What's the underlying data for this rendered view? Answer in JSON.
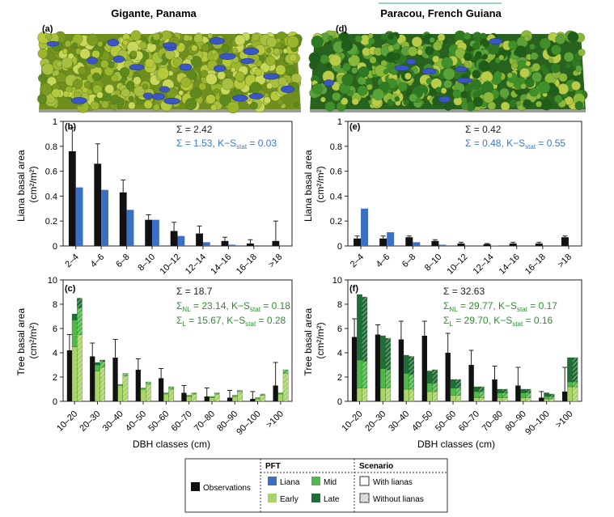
{
  "colors": {
    "observations": "#111111",
    "liana": "#3a6fc4",
    "early": "#a8d468",
    "mid": "#4fb84a",
    "late": "#1f6e37",
    "stat_blue": "#3a79c9",
    "stat_green": "#2f8f2f",
    "canopy_green": "#8fae2a",
    "canopy_blue": "#3a55c4"
  },
  "titles": {
    "left": "Gigante, Panama",
    "right": "Paracou, French Guiana"
  },
  "panel_labels": {
    "a": "(a)",
    "b": "(b)",
    "c": "(c)",
    "d": "(d)",
    "e": "(e)",
    "f": "(f)"
  },
  "axes": {
    "liana_ylabel_1": "Liana basal area",
    "liana_ylabel_2": "(cm²/m²)",
    "tree_ylabel_1": "Tree basal area",
    "tree_ylabel_2": "(cm²/m²)",
    "xlabel": "DBH classes (cm)"
  },
  "stats": {
    "b": {
      "sum_obs": "Σ = 2.42",
      "sum_model": "Σ = 1.53, K−S",
      "sub": "stat",
      "tail": " = 0.03"
    },
    "e": {
      "sum_obs": "Σ = 0.42",
      "sum_model": "Σ = 0.48, K−S",
      "sub": "stat",
      "tail": " = 0.55"
    },
    "c": {
      "sum_obs": "Σ = 18.7",
      "nl_pre": "Σ",
      "nl_sub": "NL",
      "nl_mid": " = 23.14, K−S",
      "nl_sub2": "stat",
      "nl_tail": " = 0.18",
      "l_pre": "Σ",
      "l_sub": "L",
      "l_mid": " = 15.67, K−S",
      "l_sub2": "stat",
      "l_tail": " = 0.28"
    },
    "f": {
      "sum_obs": "Σ = 32.63",
      "nl_pre": "Σ",
      "nl_sub": "NL",
      "nl_mid": " = 29.77, K−S",
      "nl_sub2": "stat",
      "nl_tail": " = 0.17",
      "l_pre": "Σ",
      "l_sub": "L",
      "l_mid": " = 29.70, K−S",
      "l_sub2": "stat",
      "l_tail": " = 0.16"
    }
  },
  "legend": {
    "pft_header": "PFT",
    "scenario_header": "Scenario",
    "observations": "Observations",
    "liana": "Liana",
    "mid": "Mid",
    "early": "Early",
    "late": "Late",
    "with_lianas": "With lianas",
    "without_lianas": "Without lianas"
  },
  "chart_data": [
    {
      "id": "b",
      "type": "bar",
      "title": "",
      "ylabel": "Liana basal area (cm²/m²)",
      "ylim": [
        0,
        1
      ],
      "yticks": [
        "0",
        "0.2",
        "0.4",
        "0.6",
        "0.8",
        "1"
      ],
      "categories": [
        "2–4",
        "4–6",
        "6–8",
        "8–10",
        "10–12",
        "12–14",
        "14–16",
        "16–18",
        ">18"
      ],
      "series": [
        {
          "name": "Observations",
          "values": [
            0.76,
            0.66,
            0.43,
            0.21,
            0.12,
            0.1,
            0.04,
            0.02,
            0.04
          ]
        },
        {
          "name": "Liana",
          "values": [
            0.47,
            0.45,
            0.29,
            0.21,
            0.08,
            0.03,
            0.01,
            0.005,
            0.0
          ]
        }
      ],
      "error_top": [
        0.95,
        0.82,
        0.53,
        0.25,
        0.19,
        0.16,
        0.07,
        0.05,
        0.2
      ]
    },
    {
      "id": "e",
      "type": "bar",
      "title": "",
      "ylabel": "Liana basal area (cm²/m²)",
      "ylim": [
        0,
        1
      ],
      "yticks": [
        "0",
        "0.2",
        "0.4",
        "0.6",
        "0.8",
        "1"
      ],
      "categories": [
        "2–4",
        "4–6",
        "6–8",
        "8–10",
        "10–12",
        "12–14",
        "14–16",
        "16–18",
        ">18"
      ],
      "series": [
        {
          "name": "Observations",
          "values": [
            0.06,
            0.06,
            0.07,
            0.04,
            0.02,
            0.015,
            0.02,
            0.02,
            0.07
          ]
        },
        {
          "name": "Liana",
          "values": [
            0.3,
            0.11,
            0.03,
            0.01,
            0.005,
            0.003,
            0.0,
            0.0,
            0.0
          ]
        }
      ],
      "error_top": [
        0.08,
        0.08,
        0.08,
        0.05,
        0.03,
        0.02,
        0.03,
        0.03,
        0.08
      ]
    },
    {
      "id": "c",
      "type": "bar",
      "title": "",
      "xlabel": "DBH classes (cm)",
      "ylabel": "Tree basal area (cm²/m²)",
      "ylim": [
        0,
        10
      ],
      "yticks": [
        "0",
        "2",
        "4",
        "6",
        "8",
        "10"
      ],
      "categories": [
        "10–20",
        "20–30",
        "30–40",
        "40–50",
        "50–60",
        "60–70",
        "70–80",
        "80–90",
        "90–100",
        ">100"
      ],
      "observations": [
        4.2,
        3.7,
        3.6,
        2.6,
        1.9,
        0.7,
        0.4,
        0.3,
        0.2,
        1.3
      ],
      "error_top": [
        5.5,
        4.8,
        5.1,
        3.5,
        2.7,
        1.3,
        1.1,
        0.9,
        0.8,
        3.2
      ],
      "with_lianas": {
        "early": [
          4.5,
          2.5,
          1.3,
          1.0,
          0.6,
          0.4,
          0.3,
          0.4,
          0.2,
          0.6
        ],
        "mid": [
          2.2,
          0.5,
          0.1,
          0.1,
          0.1,
          0.1,
          0.1,
          0.1,
          0.1,
          0.1
        ],
        "late": [
          0.5,
          0.2,
          0.0,
          0.0,
          0.0,
          0.0,
          0.0,
          0.0,
          0.0,
          0.0
        ]
      },
      "without_lianas": {
        "early": [
          5.5,
          2.8,
          2.1,
          1.4,
          1.0,
          0.6,
          0.6,
          0.8,
          0.5,
          2.3
        ],
        "mid": [
          2.2,
          0.5,
          0.2,
          0.2,
          0.2,
          0.1,
          0.1,
          0.1,
          0.1,
          0.3
        ],
        "late": [
          0.8,
          0.1,
          0.0,
          0.0,
          0.0,
          0.0,
          0.0,
          0.0,
          0.0,
          0.0
        ]
      }
    },
    {
      "id": "f",
      "type": "bar",
      "title": "",
      "xlabel": "DBH classes (cm)",
      "ylabel": "Tree basal area (cm²/m²)",
      "ylim": [
        0,
        10
      ],
      "yticks": [
        "0",
        "2",
        "4",
        "6",
        "8",
        "10"
      ],
      "categories": [
        "10–20",
        "20–30",
        "30–40",
        "40–50",
        "50–60",
        "60–70",
        "70–80",
        "80–90",
        "90–100",
        ">100"
      ],
      "observations": [
        5.3,
        5.5,
        5.1,
        5.4,
        4.0,
        3.0,
        1.8,
        1.3,
        0.3,
        0.8
      ],
      "error_top": [
        6.8,
        6.3,
        6.6,
        6.6,
        5.6,
        4.2,
        2.9,
        2.8,
        0.8,
        2.8
      ],
      "with_lianas": {
        "early": [
          1.1,
          1.1,
          1.0,
          0.8,
          0.5,
          0.3,
          0.3,
          0.3,
          0.2,
          1.2
        ],
        "mid": [
          2.3,
          1.6,
          1.3,
          0.7,
          0.6,
          0.5,
          0.4,
          0.4,
          0.2,
          0.4
        ],
        "late": [
          5.4,
          2.7,
          1.5,
          1.0,
          0.7,
          0.4,
          0.3,
          0.3,
          0.3,
          2.0
        ]
      },
      "without_lianas": {
        "early": [
          1.1,
          1.1,
          1.0,
          0.8,
          0.5,
          0.3,
          0.3,
          0.3,
          0.2,
          1.2
        ],
        "mid": [
          2.2,
          1.5,
          1.2,
          0.7,
          0.6,
          0.5,
          0.4,
          0.4,
          0.2,
          0.4
        ],
        "late": [
          5.3,
          2.6,
          1.5,
          1.1,
          0.7,
          0.4,
          0.3,
          0.3,
          0.2,
          2.0
        ]
      }
    }
  ]
}
